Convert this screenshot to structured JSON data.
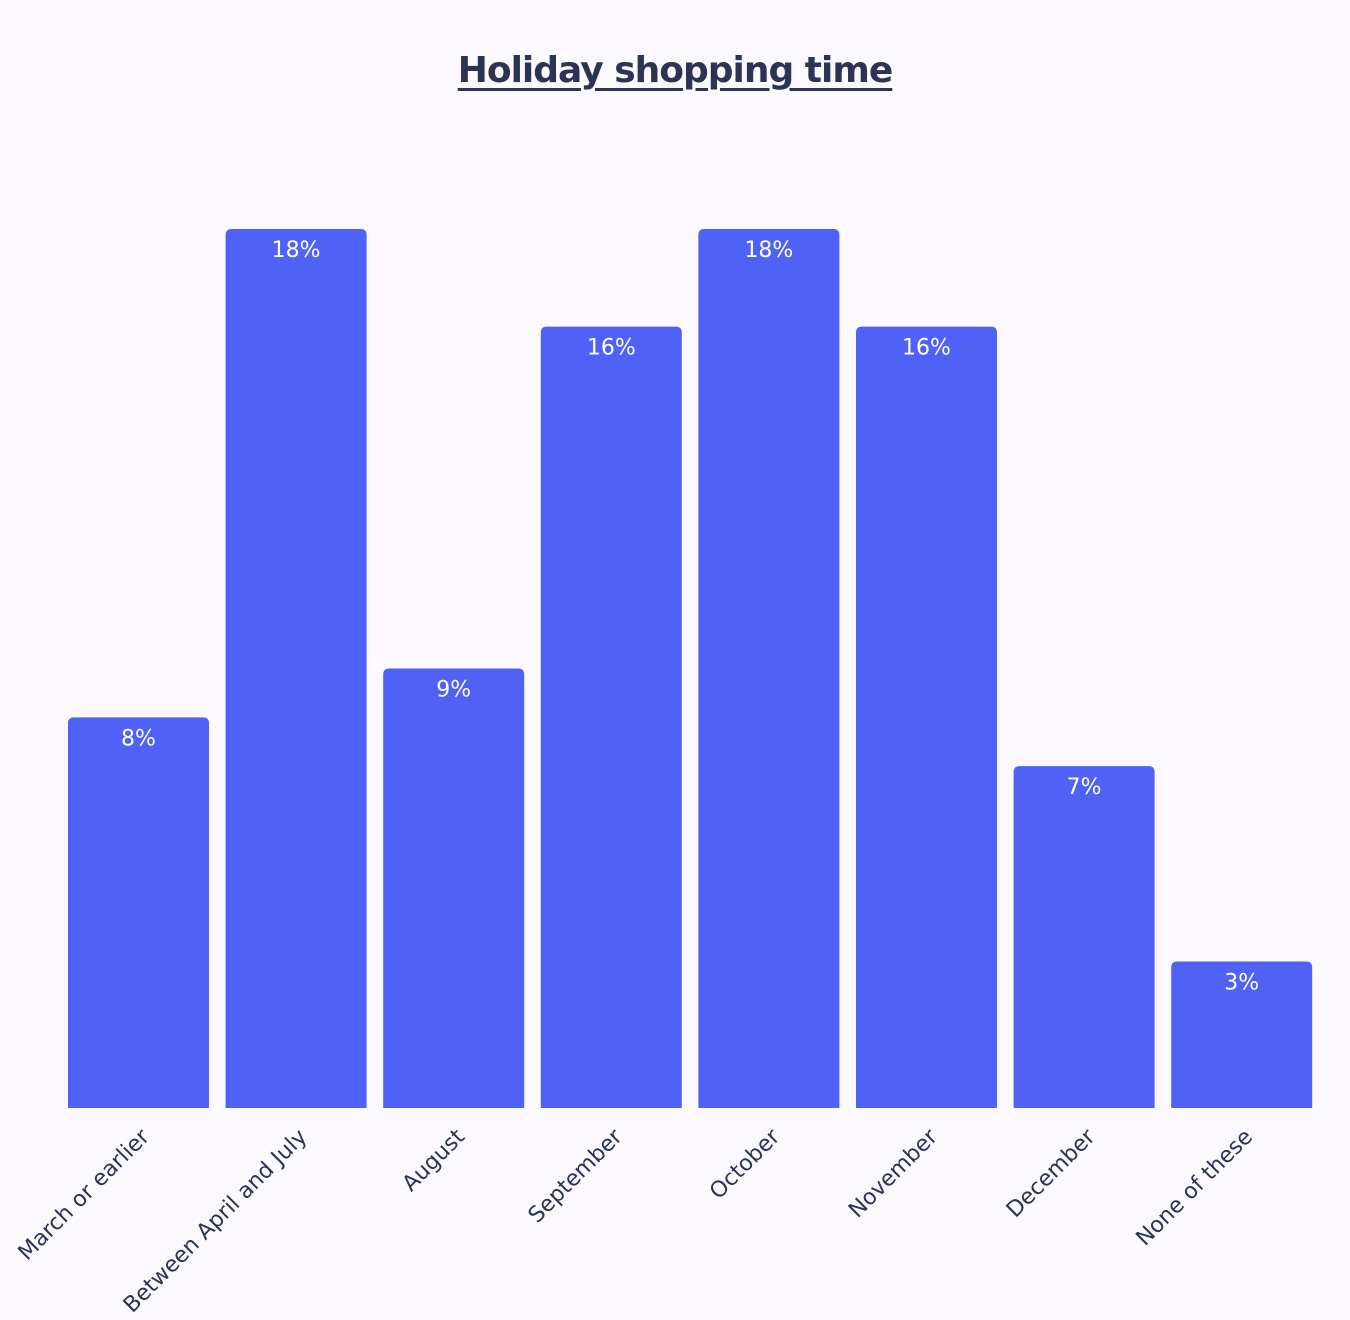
{
  "chart_data": {
    "type": "bar",
    "title": "Holiday shopping time",
    "xlabel": "",
    "ylabel": "",
    "categories": [
      "March or earlier",
      "Between April and July",
      "August",
      "September",
      "October",
      "November",
      "December",
      "None of these"
    ],
    "values": [
      8,
      18,
      9,
      16,
      18,
      16,
      7,
      3
    ],
    "value_labels": [
      "8%",
      "18%",
      "9%",
      "16%",
      "18%",
      "16%",
      "7%",
      "3%"
    ],
    "ylim": [
      0,
      18
    ],
    "grid": false,
    "legend": "none",
    "bar_color": "#4f62f5"
  }
}
